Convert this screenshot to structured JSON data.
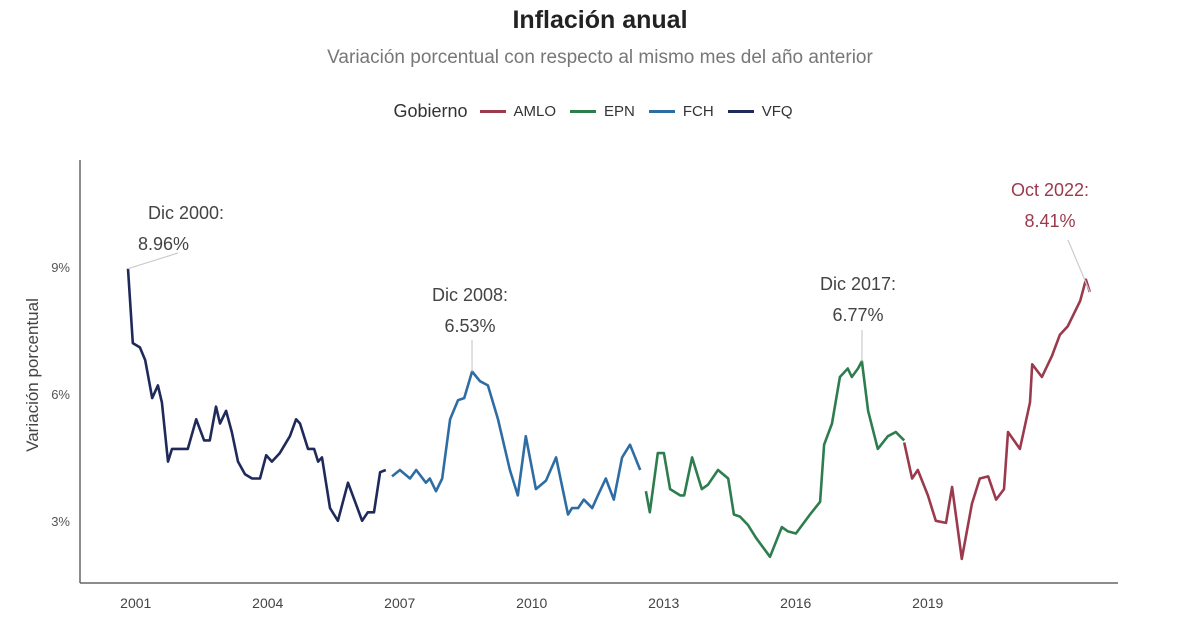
{
  "chart_data": {
    "type": "line",
    "title": "Inflación anual",
    "subtitle": "Variación porcentual con respecto al mismo mes del año anterior",
    "xlabel": "",
    "ylabel": "Variación porcentual",
    "xlim": [
      2000.5,
      2023.5
    ],
    "ylim": [
      1.5,
      11.5
    ],
    "x_ticks": [
      "2001",
      "2004",
      "2007",
      "2010",
      "2013",
      "2016",
      "2019"
    ],
    "x_tick_values": [
      2001,
      2004,
      2007,
      2010,
      2013,
      2016,
      2019
    ],
    "y_ticks": [
      "3%",
      "6%",
      "9%"
    ],
    "y_tick_values": [
      3,
      6,
      9
    ],
    "grid": false,
    "legend": {
      "title": "Gobierno",
      "placement": "top"
    },
    "series": [
      {
        "name": "AMLO",
        "color": "#9b3a4d",
        "points": [
          [
            2018.6,
            4.85
          ],
          [
            2018.78,
            4.0
          ],
          [
            2018.91,
            4.2
          ],
          [
            2019.14,
            3.6
          ],
          [
            2019.32,
            3.0
          ],
          [
            2019.55,
            2.95
          ],
          [
            2019.69,
            3.8
          ],
          [
            2019.91,
            2.1
          ],
          [
            2020.14,
            3.4
          ],
          [
            2020.32,
            4.0
          ],
          [
            2020.51,
            4.05
          ],
          [
            2020.69,
            3.5
          ],
          [
            2020.87,
            3.75
          ],
          [
            2020.96,
            5.1
          ],
          [
            2021.23,
            4.7
          ],
          [
            2021.46,
            5.8
          ],
          [
            2021.51,
            6.7
          ],
          [
            2021.73,
            6.4
          ],
          [
            2021.96,
            6.9
          ],
          [
            2022.14,
            7.4
          ],
          [
            2022.32,
            7.6
          ],
          [
            2022.6,
            8.2
          ],
          [
            2022.73,
            8.7
          ],
          [
            2022.82,
            8.41
          ]
        ]
      },
      {
        "name": "EPN",
        "color": "#2e7d4f",
        "points": [
          [
            2012.73,
            3.7
          ],
          [
            2012.82,
            3.2
          ],
          [
            2013.0,
            4.6
          ],
          [
            2013.14,
            4.6
          ],
          [
            2013.28,
            3.75
          ],
          [
            2013.51,
            3.6
          ],
          [
            2013.6,
            3.6
          ],
          [
            2013.78,
            4.5
          ],
          [
            2014.0,
            3.75
          ],
          [
            2014.14,
            3.85
          ],
          [
            2014.37,
            4.2
          ],
          [
            2014.6,
            4.0
          ],
          [
            2014.73,
            3.15
          ],
          [
            2014.87,
            3.1
          ],
          [
            2015.05,
            2.9
          ],
          [
            2015.23,
            2.6
          ],
          [
            2015.55,
            2.15
          ],
          [
            2015.82,
            2.85
          ],
          [
            2015.96,
            2.75
          ],
          [
            2016.14,
            2.7
          ],
          [
            2016.46,
            3.15
          ],
          [
            2016.69,
            3.45
          ],
          [
            2016.78,
            4.8
          ],
          [
            2016.96,
            5.3
          ],
          [
            2017.14,
            6.4
          ],
          [
            2017.32,
            6.6
          ],
          [
            2017.41,
            6.4
          ],
          [
            2017.55,
            6.6
          ],
          [
            2017.64,
            6.77
          ],
          [
            2017.78,
            5.6
          ],
          [
            2018.0,
            4.7
          ],
          [
            2018.23,
            5.0
          ],
          [
            2018.41,
            5.1
          ],
          [
            2018.6,
            4.9
          ]
        ]
      },
      {
        "name": "FCH",
        "color": "#2e6da4",
        "points": [
          [
            2006.96,
            4.05
          ],
          [
            2007.14,
            4.2
          ],
          [
            2007.37,
            4.0
          ],
          [
            2007.51,
            4.2
          ],
          [
            2007.73,
            3.9
          ],
          [
            2007.82,
            4.0
          ],
          [
            2007.96,
            3.7
          ],
          [
            2008.1,
            4.0
          ],
          [
            2008.28,
            5.4
          ],
          [
            2008.46,
            5.85
          ],
          [
            2008.6,
            5.9
          ],
          [
            2008.78,
            6.53
          ],
          [
            2008.96,
            6.3
          ],
          [
            2009.14,
            6.2
          ],
          [
            2009.37,
            5.4
          ],
          [
            2009.64,
            4.2
          ],
          [
            2009.82,
            3.6
          ],
          [
            2010.0,
            5.0
          ],
          [
            2010.23,
            3.75
          ],
          [
            2010.46,
            3.95
          ],
          [
            2010.69,
            4.5
          ],
          [
            2010.82,
            3.85
          ],
          [
            2010.96,
            3.15
          ],
          [
            2011.05,
            3.3
          ],
          [
            2011.19,
            3.3
          ],
          [
            2011.32,
            3.5
          ],
          [
            2011.51,
            3.3
          ],
          [
            2011.64,
            3.6
          ],
          [
            2011.82,
            4.0
          ],
          [
            2012.0,
            3.5
          ],
          [
            2012.19,
            4.5
          ],
          [
            2012.37,
            4.8
          ],
          [
            2012.6,
            4.2
          ]
        ]
      },
      {
        "name": "VFQ",
        "color": "#1f2a5a",
        "points": [
          [
            2000.96,
            8.96
          ],
          [
            2001.07,
            7.2
          ],
          [
            2001.23,
            7.1
          ],
          [
            2001.35,
            6.8
          ],
          [
            2001.51,
            5.9
          ],
          [
            2001.64,
            6.2
          ],
          [
            2001.73,
            5.8
          ],
          [
            2001.87,
            4.4
          ],
          [
            2001.96,
            4.7
          ],
          [
            2002.14,
            4.7
          ],
          [
            2002.32,
            4.7
          ],
          [
            2002.51,
            5.4
          ],
          [
            2002.69,
            4.9
          ],
          [
            2002.82,
            4.9
          ],
          [
            2002.96,
            5.7
          ],
          [
            2003.05,
            5.3
          ],
          [
            2003.19,
            5.6
          ],
          [
            2003.32,
            5.1
          ],
          [
            2003.46,
            4.4
          ],
          [
            2003.62,
            4.1
          ],
          [
            2003.78,
            4.0
          ],
          [
            2003.96,
            4.0
          ],
          [
            2004.1,
            4.55
          ],
          [
            2004.23,
            4.4
          ],
          [
            2004.41,
            4.6
          ],
          [
            2004.64,
            5.0
          ],
          [
            2004.78,
            5.4
          ],
          [
            2004.87,
            5.3
          ],
          [
            2005.05,
            4.7
          ],
          [
            2005.19,
            4.7
          ],
          [
            2005.28,
            4.4
          ],
          [
            2005.37,
            4.5
          ],
          [
            2005.55,
            3.3
          ],
          [
            2005.73,
            3.0
          ],
          [
            2005.96,
            3.9
          ],
          [
            2006.14,
            3.4
          ],
          [
            2006.28,
            3.0
          ],
          [
            2006.41,
            3.2
          ],
          [
            2006.55,
            3.2
          ],
          [
            2006.69,
            4.15
          ],
          [
            2006.82,
            4.2
          ]
        ]
      }
    ],
    "annotations": [
      {
        "label": "Dic 2000:",
        "value_label": "8.96%",
        "x": 2000.96,
        "y": 8.96,
        "color": "#444444"
      },
      {
        "label": "Dic 2008:",
        "value_label": "6.53%",
        "x": 2008.78,
        "y": 6.53,
        "color": "#444444"
      },
      {
        "label": "Dic 2017:",
        "value_label": "6.77%",
        "x": 2017.64,
        "y": 6.77,
        "color": "#444444"
      },
      {
        "label": "Oct 2022:",
        "value_label": "8.41%",
        "x": 2022.82,
        "y": 8.41,
        "color": "#9b3a4d"
      }
    ]
  }
}
